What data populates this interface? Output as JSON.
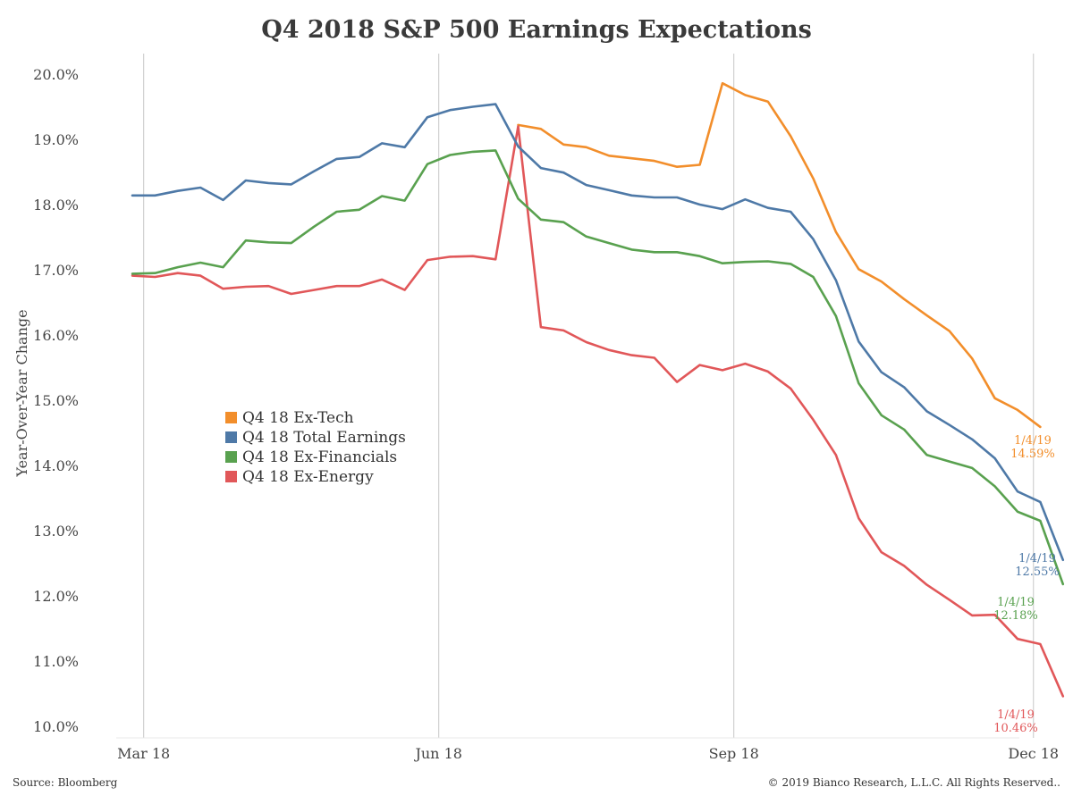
{
  "chart_data": {
    "type": "line",
    "title": "Q4 2018 S&P 500 Earnings Expectations",
    "ylabel": "Year-Over-Year Change",
    "xlabel": "",
    "ylim": [
      10.0,
      20.0
    ],
    "yticks": [
      "10.0%",
      "11.0%",
      "12.0%",
      "13.0%",
      "14.0%",
      "15.0%",
      "16.0%",
      "17.0%",
      "18.0%",
      "19.0%",
      "20.0%"
    ],
    "xticks": [
      {
        "label": "Mar 18",
        "index": 0.5
      },
      {
        "label": "Jun 18",
        "index": 13.5
      },
      {
        "label": "Sep 18",
        "index": 26.5
      },
      {
        "label": "Dec 18",
        "index": 39.7
      }
    ],
    "x_count": 40,
    "grid": {
      "vertical": true,
      "horizontal": false
    },
    "legend_position": "center-left",
    "series": [
      {
        "name": "Q4 18 Ex-Tech",
        "color": "#f28e2b",
        "start": 17,
        "values": [
          19.22,
          19.16,
          18.92,
          18.88,
          18.75,
          18.71,
          18.67,
          18.58,
          18.61,
          19.86,
          19.68,
          19.58,
          19.05,
          18.4,
          17.58,
          17.01,
          16.82,
          16.55,
          16.3,
          16.06,
          15.64,
          15.03,
          14.85,
          14.59
        ],
        "end_label": {
          "date": "1/4/19",
          "value": "14.59%"
        }
      },
      {
        "name": "Q4 18 Total Earnings",
        "color": "#4e79a7",
        "start": 0,
        "values": [
          18.14,
          18.14,
          18.21,
          18.26,
          18.07,
          18.37,
          18.33,
          18.31,
          18.51,
          18.7,
          18.73,
          18.94,
          18.88,
          19.34,
          19.45,
          19.5,
          19.54,
          18.89,
          18.56,
          18.49,
          18.3,
          18.22,
          18.14,
          18.11,
          18.11,
          18.0,
          17.93,
          18.08,
          17.95,
          17.89,
          17.47,
          16.84,
          15.9,
          15.43,
          15.2,
          14.83,
          14.62,
          14.4,
          14.11,
          13.6,
          13.44,
          12.55
        ],
        "end_label": {
          "date": "1/4/19",
          "value": "12.55%"
        }
      },
      {
        "name": "Q4 18 Ex-Financials",
        "color": "#59a14f",
        "start": 0,
        "values": [
          16.94,
          16.95,
          17.04,
          17.11,
          17.04,
          17.45,
          17.42,
          17.41,
          17.66,
          17.89,
          17.92,
          18.13,
          18.06,
          18.62,
          18.76,
          18.81,
          18.83,
          18.09,
          17.77,
          17.73,
          17.51,
          17.41,
          17.31,
          17.27,
          17.27,
          17.21,
          17.1,
          17.12,
          17.13,
          17.09,
          16.89,
          16.29,
          15.26,
          14.77,
          14.55,
          14.16,
          14.06,
          13.96,
          13.68,
          13.29,
          13.15,
          12.18
        ],
        "end_label": {
          "date": "1/4/19",
          "value": "12.18%"
        }
      },
      {
        "name": "Q4 18 Ex-Energy",
        "color": "#e15759",
        "start": 0,
        "values": [
          16.91,
          16.89,
          16.95,
          16.91,
          16.71,
          16.74,
          16.75,
          16.63,
          16.69,
          16.75,
          16.75,
          16.85,
          16.69,
          17.15,
          17.2,
          17.21,
          17.16,
          19.2,
          16.12,
          16.07,
          15.89,
          15.77,
          15.69,
          15.65,
          15.28,
          15.54,
          15.46,
          15.56,
          15.44,
          15.18,
          14.7,
          14.16,
          13.19,
          12.67,
          12.46,
          12.17,
          11.94,
          11.7,
          11.71,
          11.34,
          11.26,
          10.46
        ],
        "end_label": {
          "date": "1/4/19",
          "value": "10.46%"
        }
      }
    ],
    "legend_order": [
      0,
      1,
      2,
      3
    ]
  },
  "footer": {
    "source": "Source: Bloomberg",
    "copyright": "© 2019 Bianco Research, L.L.C. All Rights Reserved.."
  }
}
